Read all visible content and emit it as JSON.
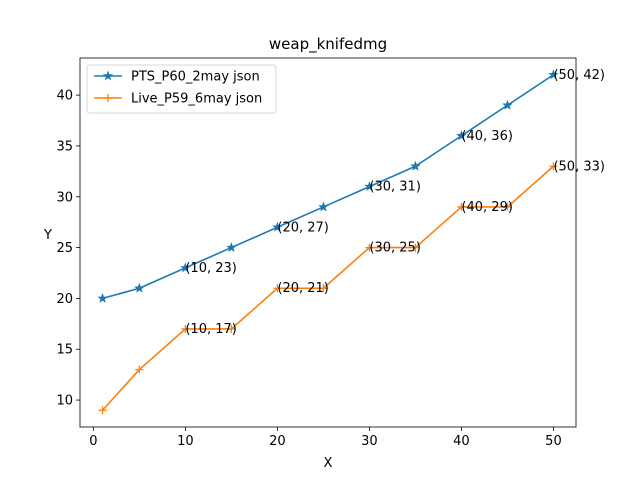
{
  "chart_data": {
    "type": "line",
    "title": "weap_knifedmg",
    "xlabel": "X",
    "ylabel": "Y",
    "xlim": [
      -1.45,
      52.45
    ],
    "ylim": [
      7.35,
      43.65
    ],
    "xticks": [
      0,
      10,
      20,
      30,
      40,
      50
    ],
    "yticks": [
      10,
      15,
      20,
      25,
      30,
      35,
      40
    ],
    "legend_position": "top-left",
    "grid": false,
    "series": [
      {
        "name": "PTS_P60_2may json",
        "color": "#1f77b4",
        "marker": "star",
        "x": [
          1,
          5,
          10,
          15,
          20,
          25,
          30,
          35,
          40,
          45,
          50
        ],
        "y": [
          20,
          21,
          23,
          25,
          27,
          29,
          31,
          33,
          36,
          39,
          42
        ],
        "labeled_points": [
          {
            "x": 10,
            "y": 23,
            "text": "(10, 23)"
          },
          {
            "x": 20,
            "y": 27,
            "text": "(20, 27)"
          },
          {
            "x": 30,
            "y": 31,
            "text": "(30, 31)"
          },
          {
            "x": 40,
            "y": 36,
            "text": "(40, 36)"
          },
          {
            "x": 50,
            "y": 42,
            "text": "(50, 42)"
          }
        ]
      },
      {
        "name": "Live_P59_6may json",
        "color": "#ff7f0e",
        "marker": "plus",
        "x": [
          1,
          5,
          10,
          15,
          20,
          25,
          30,
          35,
          40,
          45,
          50
        ],
        "y": [
          9,
          13,
          17,
          17,
          21,
          21,
          25,
          25,
          29,
          29,
          33
        ],
        "labeled_points": [
          {
            "x": 10,
            "y": 17,
            "text": "(10, 17)"
          },
          {
            "x": 20,
            "y": 21,
            "text": "(20, 21)"
          },
          {
            "x": 30,
            "y": 25,
            "text": "(30, 25)"
          },
          {
            "x": 40,
            "y": 29,
            "text": "(40, 29)"
          },
          {
            "x": 50,
            "y": 33,
            "text": "(50, 33)"
          }
        ]
      }
    ]
  }
}
